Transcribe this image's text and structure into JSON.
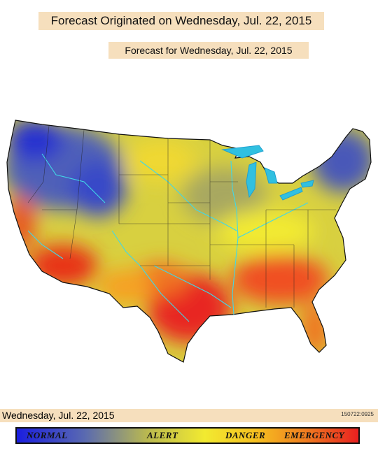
{
  "header": {
    "title": "Forecast Originated on Wednesday, Jul. 22, 2015",
    "subtitle": "Forecast for Wednesday, Jul. 22, 2015"
  },
  "footer": {
    "date": "Wednesday, Jul. 22, 2015",
    "code": "150722:0925"
  },
  "legend": {
    "labels": [
      "NORMAL",
      "ALERT",
      "DANGER",
      "EMERGENCY"
    ]
  }
}
